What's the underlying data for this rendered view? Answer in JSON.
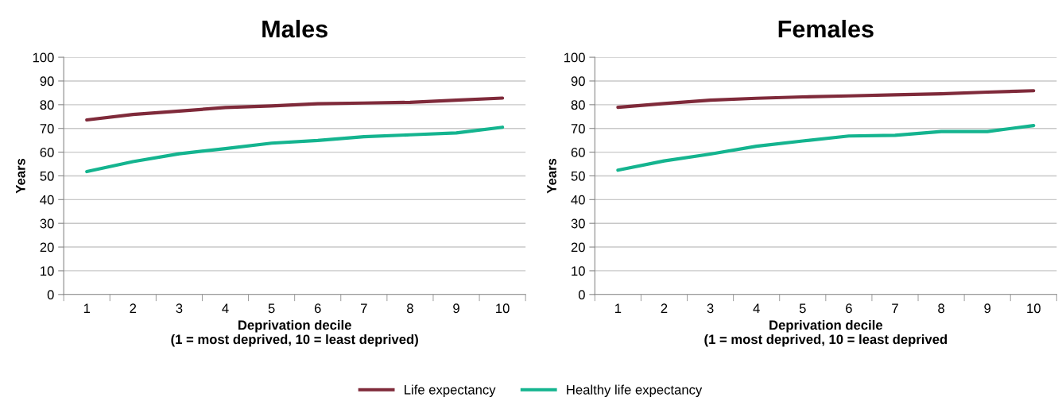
{
  "chart_data": [
    {
      "type": "line",
      "title": "Males",
      "xlabel": "Deprivation decile\n(1 = most deprived, 10 = least deprived)",
      "ylabel": "Years",
      "categories": [
        "1",
        "2",
        "3",
        "4",
        "5",
        "6",
        "7",
        "8",
        "9",
        "10"
      ],
      "series": [
        {
          "color": "#7f2a3a",
          "values": [
            73.6,
            75.9,
            77.3,
            78.8,
            79.5,
            80.4,
            80.7,
            81.0,
            81.9,
            82.8
          ]
        },
        {
          "color": "#14b48f",
          "values": [
            51.8,
            56.0,
            59.3,
            61.5,
            63.8,
            64.9,
            66.5,
            67.3,
            68.1,
            70.5
          ]
        }
      ],
      "ylim": [
        0,
        100
      ],
      "yticks": [
        0,
        10,
        20,
        30,
        40,
        50,
        60,
        70,
        80,
        90,
        100
      ],
      "grid": "y",
      "marker": "none",
      "line_style": "solid"
    },
    {
      "type": "line",
      "title": "Females",
      "xlabel": "Deprivation decile\n(1 = most deprived, 10 = least deprived",
      "ylabel": "Years",
      "categories": [
        "1",
        "2",
        "3",
        "4",
        "5",
        "6",
        "7",
        "8",
        "9",
        "10"
      ],
      "series": [
        {
          "name": "Life expectancy",
          "color": "#7f2a3a",
          "values": [
            78.9,
            80.5,
            81.9,
            82.7,
            83.3,
            83.7,
            84.2,
            84.6,
            85.3,
            85.9
          ]
        },
        {
          "name": "Healthy life expectancy",
          "color": "#14b48f",
          "values": [
            52.4,
            56.3,
            59.2,
            62.5,
            64.7,
            66.8,
            67.1,
            68.7,
            68.7,
            71.2
          ]
        }
      ],
      "ylim": [
        0,
        100
      ],
      "yticks": [
        0,
        10,
        20,
        30,
        40,
        50,
        60,
        70,
        80,
        90,
        100
      ],
      "grid": "y",
      "legend": "bottom",
      "marker": "none",
      "line_style": "solid"
    }
  ]
}
